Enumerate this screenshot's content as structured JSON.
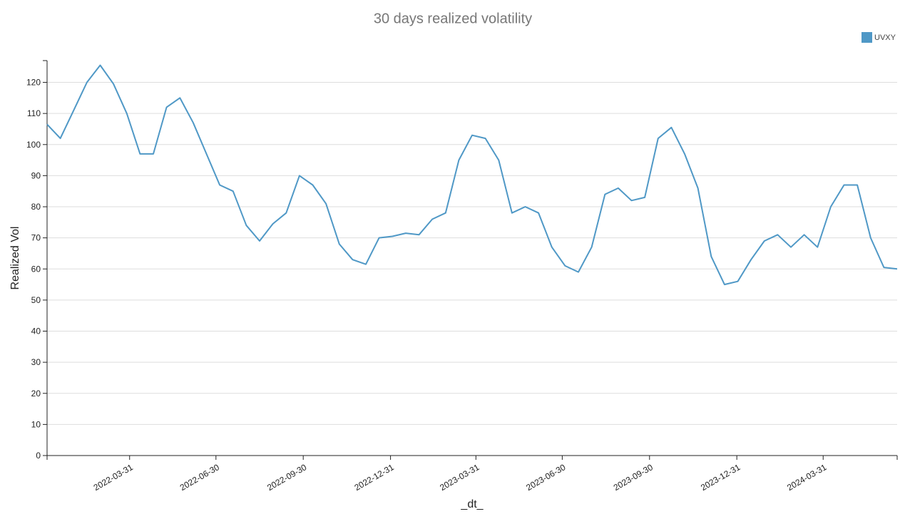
{
  "chart_data": {
    "type": "line",
    "title": "30 days realized volatility",
    "x_label": "_dt_",
    "y_label": "Realized Vol",
    "legend": "top-right",
    "grid": true,
    "x": [
      "2022-01-03",
      "2022-01-17",
      "2022-01-31",
      "2022-02-14",
      "2022-02-28",
      "2022-03-14",
      "2022-03-28",
      "2022-04-11",
      "2022-04-25",
      "2022-05-09",
      "2022-05-23",
      "2022-06-06",
      "2022-06-20",
      "2022-07-04",
      "2022-07-18",
      "2022-08-01",
      "2022-08-15",
      "2022-08-29",
      "2022-09-12",
      "2022-09-26",
      "2022-10-10",
      "2022-10-24",
      "2022-11-07",
      "2022-11-21",
      "2022-12-05",
      "2022-12-19",
      "2023-01-02",
      "2023-01-16",
      "2023-01-30",
      "2023-02-13",
      "2023-02-27",
      "2023-03-13",
      "2023-03-27",
      "2023-04-10",
      "2023-04-24",
      "2023-05-08",
      "2023-05-22",
      "2023-06-05",
      "2023-06-19",
      "2023-07-03",
      "2023-07-17",
      "2023-07-31",
      "2023-08-14",
      "2023-08-28",
      "2023-09-11",
      "2023-09-25",
      "2023-10-09",
      "2023-10-23",
      "2023-11-06",
      "2023-11-20",
      "2023-12-04",
      "2023-12-18",
      "2024-01-01",
      "2024-01-15",
      "2024-01-29",
      "2024-02-12",
      "2024-02-26",
      "2024-03-11",
      "2024-03-25",
      "2024-04-08",
      "2024-04-22",
      "2024-05-06",
      "2024-05-20",
      "2024-06-03",
      "2024-06-17"
    ],
    "series": [
      {
        "name": "UVXY",
        "color": "#4f98c6",
        "values": [
          106.5,
          102,
          111,
          120,
          125.5,
          119.5,
          110,
          97,
          97,
          112,
          115,
          107,
          97,
          87,
          85,
          74,
          69,
          74.5,
          78,
          90,
          87,
          81,
          68,
          63,
          61.5,
          70,
          70.5,
          71.5,
          71,
          76,
          78,
          95,
          103,
          102,
          95,
          78,
          80,
          78,
          67,
          61,
          59,
          67,
          84,
          86,
          82,
          83,
          102,
          105.5,
          97,
          86,
          64,
          55,
          56,
          63,
          69,
          71,
          67,
          71,
          67,
          80,
          87,
          87,
          70,
          60.5,
          60
        ]
      }
    ],
    "xlim": [
      "2022-01-03",
      "2024-06-17"
    ],
    "xticks": [
      "2022-03-31",
      "2022-06-30",
      "2022-09-30",
      "2022-12-31",
      "2023-03-31",
      "2023-06-30",
      "2023-09-30",
      "2023-12-31",
      "2024-03-31"
    ],
    "ylim": [
      0,
      127
    ],
    "yticks": [
      0,
      10,
      20,
      30,
      40,
      50,
      60,
      70,
      80,
      90,
      100,
      110,
      120
    ]
  }
}
